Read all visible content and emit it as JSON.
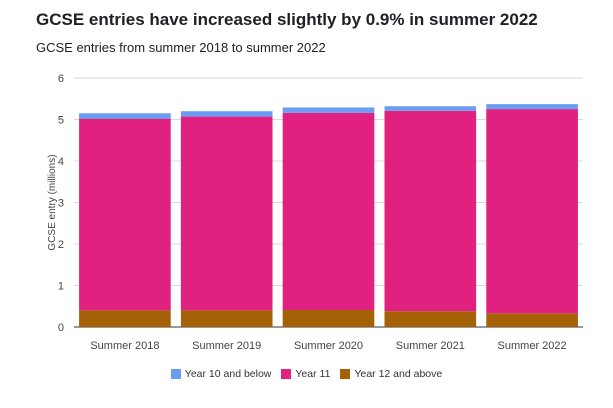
{
  "chart_data": {
    "type": "bar",
    "stacked": true,
    "title": "GCSE entries have increased slightly by 0.9% in summer 2022",
    "subtitle": "GCSE entries from summer 2018 to summer 2022",
    "ylabel": "GCSE entry (millions)",
    "ylim": [
      0,
      6
    ],
    "yticks": [
      "0",
      "1",
      "2",
      "3",
      "4",
      "5",
      "6"
    ],
    "grid": true,
    "legend_position": "bottom",
    "categories": [
      "Summer 2018",
      "Summer 2019",
      "Summer 2020",
      "Summer 2021",
      "Summer 2022"
    ],
    "series": [
      {
        "name": "Year 12 and above",
        "color": "#a46105",
        "values": [
          0.4,
          0.4,
          0.41,
          0.38,
          0.33
        ]
      },
      {
        "name": "Year 11",
        "color": "#e0217f",
        "values": [
          4.62,
          4.67,
          4.75,
          4.83,
          4.92
        ]
      },
      {
        "name": "Year 10 and below",
        "color": "#6a9cf2",
        "values": [
          0.13,
          0.13,
          0.13,
          0.11,
          0.12
        ]
      }
    ],
    "legend_order": [
      2,
      1,
      0
    ]
  }
}
